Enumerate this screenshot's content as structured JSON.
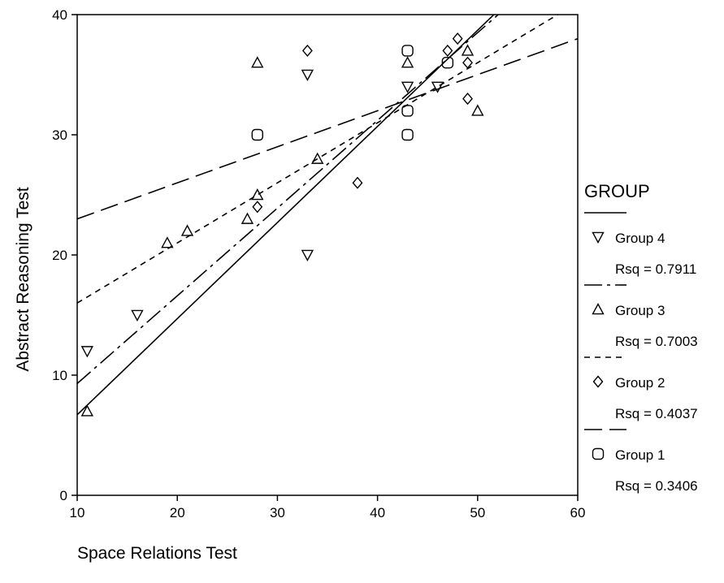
{
  "chart_data": {
    "type": "scatter",
    "xlabel": "Space Relations Test",
    "ylabel": "Abstract Reasoning Test",
    "xlim": [
      10,
      60
    ],
    "ylim": [
      0,
      40
    ],
    "x_ticks": [
      10,
      20,
      30,
      40,
      50,
      60
    ],
    "y_ticks": [
      0,
      10,
      20,
      30,
      40
    ],
    "grid": false,
    "legend": {
      "title": "GROUP",
      "placement": "right"
    },
    "series": [
      {
        "name": "Group 4",
        "marker": "triangle-down",
        "line_style": "solid",
        "rsq_label": "Rsq = 0.7911",
        "points": [
          [
            11,
            12
          ],
          [
            16,
            15
          ],
          [
            33,
            20
          ],
          [
            33,
            35
          ],
          [
            43,
            34
          ],
          [
            46,
            34
          ]
        ],
        "fit": {
          "intercept": -1.3,
          "slope": 0.8
        }
      },
      {
        "name": "Group 3",
        "marker": "triangle-up",
        "line_style": "dash-dot",
        "rsq_label": "Rsq = 0.7003",
        "points": [
          [
            11,
            7
          ],
          [
            19,
            21
          ],
          [
            21,
            22
          ],
          [
            27,
            23
          ],
          [
            28,
            25
          ],
          [
            28,
            36
          ],
          [
            34,
            28
          ],
          [
            43,
            36
          ],
          [
            49,
            37
          ],
          [
            50,
            32
          ]
        ],
        "fit": {
          "intercept": 2.0,
          "slope": 0.73
        }
      },
      {
        "name": "Group 2",
        "marker": "diamond",
        "line_style": "short-dash",
        "rsq_label": "Rsq = 0.4037",
        "points": [
          [
            28,
            24
          ],
          [
            33,
            37
          ],
          [
            38,
            26
          ],
          [
            47,
            37
          ],
          [
            48,
            38
          ],
          [
            49,
            36
          ],
          [
            49,
            33
          ]
        ],
        "fit": {
          "intercept": 11.0,
          "slope": 0.5
        }
      },
      {
        "name": "Group 1",
        "marker": "circle",
        "line_style": "long-dash",
        "rsq_label": "Rsq = 0.3406",
        "points": [
          [
            28,
            30
          ],
          [
            43,
            37
          ],
          [
            43,
            32
          ],
          [
            43,
            30
          ],
          [
            47,
            36
          ]
        ],
        "fit": {
          "intercept": 20.0,
          "slope": 0.3
        }
      }
    ]
  }
}
